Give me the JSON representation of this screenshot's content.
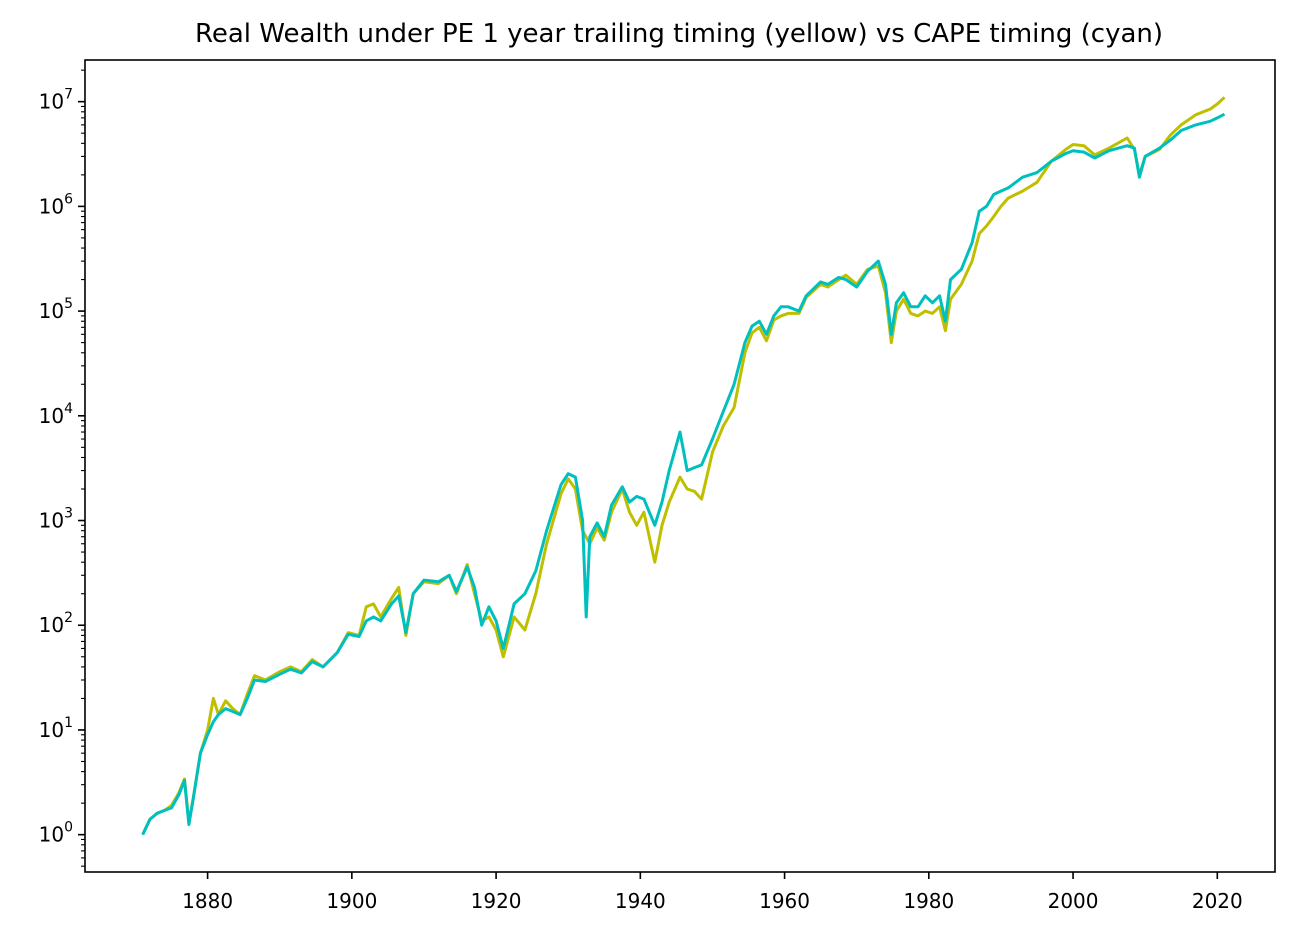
{
  "chart_data": {
    "type": "line",
    "title": "Real Wealth under PE 1 year trailing timing (yellow) vs CAPE timing (cyan)",
    "xlabel": "",
    "ylabel": "",
    "xlim": [
      1863,
      2028
    ],
    "ylim": [
      0.44,
      25000000
    ],
    "yscale": "log",
    "grid": false,
    "x_ticks": [
      "1880",
      "1900",
      "1920",
      "1940",
      "1960",
      "1980",
      "2000",
      "2020"
    ],
    "x_tick_values": [
      1880,
      1900,
      1920,
      1940,
      1960,
      1980,
      2000,
      2020
    ],
    "y_ticks": [
      {
        "value": 1,
        "base": "10",
        "exp": "0"
      },
      {
        "value": 10,
        "base": "10",
        "exp": "1"
      },
      {
        "value": 100,
        "base": "10",
        "exp": "2"
      },
      {
        "value": 1000,
        "base": "10",
        "exp": "3"
      },
      {
        "value": 10000,
        "base": "10",
        "exp": "4"
      },
      {
        "value": 100000,
        "base": "10",
        "exp": "5"
      },
      {
        "value": 1000000,
        "base": "10",
        "exp": "6"
      },
      {
        "value": 10000000,
        "base": "10",
        "exp": "7"
      }
    ],
    "series": [
      {
        "color": "#bfbf00",
        "points": [
          [
            1871.0,
            1.0
          ],
          [
            1872.0,
            1.4
          ],
          [
            1873.0,
            1.6
          ],
          [
            1874.0,
            1.7
          ],
          [
            1875.0,
            1.9
          ],
          [
            1876.0,
            2.5
          ],
          [
            1876.8,
            3.4
          ],
          [
            1877.4,
            1.3
          ],
          [
            1878.0,
            2.2
          ],
          [
            1879.0,
            6.0
          ],
          [
            1880.0,
            10.0
          ],
          [
            1880.8,
            20.0
          ],
          [
            1881.5,
            14.0
          ],
          [
            1882.5,
            19.0
          ],
          [
            1883.5,
            16.0
          ],
          [
            1884.5,
            14.0
          ],
          [
            1885.5,
            22.0
          ],
          [
            1886.5,
            33.0
          ],
          [
            1888.0,
            30.0
          ],
          [
            1890.0,
            36.0
          ],
          [
            1891.5,
            40.0
          ],
          [
            1893.0,
            36.0
          ],
          [
            1894.5,
            47.0
          ],
          [
            1896.0,
            40.0
          ],
          [
            1898.0,
            55.0
          ],
          [
            1899.5,
            85.0
          ],
          [
            1901.0,
            80.0
          ],
          [
            1902.0,
            150.0
          ],
          [
            1903.0,
            160.0
          ],
          [
            1904.0,
            120.0
          ],
          [
            1905.5,
            180.0
          ],
          [
            1906.5,
            230.0
          ],
          [
            1907.5,
            80.0
          ],
          [
            1908.5,
            200.0
          ],
          [
            1910.0,
            260.0
          ],
          [
            1912.0,
            250.0
          ],
          [
            1913.5,
            300.0
          ],
          [
            1914.5,
            200.0
          ],
          [
            1916.0,
            380.0
          ],
          [
            1917.0,
            200.0
          ],
          [
            1918.0,
            110.0
          ],
          [
            1919.0,
            120.0
          ],
          [
            1920.0,
            90.0
          ],
          [
            1921.0,
            50.0
          ],
          [
            1922.5,
            120.0
          ],
          [
            1924.0,
            90.0
          ],
          [
            1925.5,
            200.0
          ],
          [
            1927.0,
            600.0
          ],
          [
            1929.0,
            1800.0
          ],
          [
            1930.0,
            2500.0
          ],
          [
            1931.0,
            2000.0
          ],
          [
            1932.0,
            800.0
          ],
          [
            1933.0,
            600.0
          ],
          [
            1934.0,
            850.0
          ],
          [
            1935.0,
            650.0
          ],
          [
            1936.0,
            1200.0
          ],
          [
            1937.5,
            2000.0
          ],
          [
            1938.5,
            1200.0
          ],
          [
            1939.5,
            900.0
          ],
          [
            1940.5,
            1200.0
          ],
          [
            1942.0,
            400.0
          ],
          [
            1943.0,
            900.0
          ],
          [
            1944.0,
            1500.0
          ],
          [
            1945.5,
            2600.0
          ],
          [
            1946.5,
            2000.0
          ],
          [
            1947.5,
            1900.0
          ],
          [
            1948.5,
            1600.0
          ],
          [
            1950.0,
            4500.0
          ],
          [
            1951.5,
            8000.0
          ],
          [
            1953.0,
            12000.0
          ],
          [
            1954.5,
            40000.0
          ],
          [
            1955.5,
            62000.0
          ],
          [
            1956.5,
            70000.0
          ],
          [
            1957.5,
            52000.0
          ],
          [
            1958.5,
            82000.0
          ],
          [
            1959.5,
            90000.0
          ],
          [
            1960.5,
            95000.0
          ],
          [
            1962.0,
            95000.0
          ],
          [
            1963.0,
            135000.0
          ],
          [
            1965.0,
            180000.0
          ],
          [
            1966.0,
            170000.0
          ],
          [
            1967.5,
            200000.0
          ],
          [
            1968.5,
            220000.0
          ],
          [
            1970.0,
            180000.0
          ],
          [
            1971.5,
            250000.0
          ],
          [
            1973.0,
            270000.0
          ],
          [
            1974.0,
            150000.0
          ],
          [
            1974.8,
            50000.0
          ],
          [
            1975.5,
            100000.0
          ],
          [
            1976.5,
            130000.0
          ],
          [
            1977.5,
            95000.0
          ],
          [
            1978.5,
            90000.0
          ],
          [
            1979.5,
            100000.0
          ],
          [
            1980.5,
            95000.0
          ],
          [
            1981.5,
            110000.0
          ],
          [
            1982.3,
            65000.0
          ],
          [
            1983.0,
            130000.0
          ],
          [
            1984.5,
            180000.0
          ],
          [
            1986.0,
            300000.0
          ],
          [
            1987.0,
            550000.0
          ],
          [
            1988.0,
            650000.0
          ],
          [
            1989.0,
            800000.0
          ],
          [
            1990.0,
            1000000.0
          ],
          [
            1991.0,
            1200000.0
          ],
          [
            1993.0,
            1400000.0
          ],
          [
            1995.0,
            1700000.0
          ],
          [
            1997.0,
            2700000.0
          ],
          [
            1999.0,
            3500000.0
          ],
          [
            2000.0,
            3900000.0
          ],
          [
            2001.5,
            3800000.0
          ],
          [
            2003.0,
            3100000.0
          ],
          [
            2005.0,
            3600000.0
          ],
          [
            2007.5,
            4500000.0
          ],
          [
            2008.5,
            3500000.0
          ],
          [
            2009.2,
            2000000.0
          ],
          [
            2010.0,
            3000000.0
          ],
          [
            2012.0,
            3500000.0
          ],
          [
            2013.5,
            4800000.0
          ],
          [
            2015.0,
            6000000.0
          ],
          [
            2017.0,
            7500000.0
          ],
          [
            2019.0,
            8500000.0
          ],
          [
            2020.0,
            9500000.0
          ],
          [
            2021.0,
            11000000.0
          ]
        ]
      },
      {
        "color": "#00bfbf",
        "points": [
          [
            1871.0,
            1.0
          ],
          [
            1872.0,
            1.4
          ],
          [
            1873.0,
            1.6
          ],
          [
            1874.0,
            1.7
          ],
          [
            1875.0,
            1.8
          ],
          [
            1876.0,
            2.4
          ],
          [
            1876.8,
            3.3
          ],
          [
            1877.4,
            1.25
          ],
          [
            1878.0,
            2.2
          ],
          [
            1879.0,
            6.0
          ],
          [
            1880.0,
            9.0
          ],
          [
            1880.8,
            12.0
          ],
          [
            1881.5,
            14.0
          ],
          [
            1882.5,
            16.0
          ],
          [
            1883.5,
            15.0
          ],
          [
            1884.5,
            14.0
          ],
          [
            1885.5,
            20.0
          ],
          [
            1886.5,
            30.0
          ],
          [
            1888.0,
            29.0
          ],
          [
            1890.0,
            34.0
          ],
          [
            1891.5,
            38.0
          ],
          [
            1893.0,
            35.0
          ],
          [
            1894.5,
            45.0
          ],
          [
            1896.0,
            40.0
          ],
          [
            1898.0,
            55.0
          ],
          [
            1899.5,
            82.0
          ],
          [
            1901.0,
            78.0
          ],
          [
            1902.0,
            110.0
          ],
          [
            1903.0,
            120.0
          ],
          [
            1904.0,
            110.0
          ],
          [
            1905.5,
            160.0
          ],
          [
            1906.5,
            190.0
          ],
          [
            1907.5,
            85.0
          ],
          [
            1908.5,
            200.0
          ],
          [
            1910.0,
            270.0
          ],
          [
            1912.0,
            260.0
          ],
          [
            1913.5,
            300.0
          ],
          [
            1914.5,
            210.0
          ],
          [
            1916.0,
            360.0
          ],
          [
            1917.0,
            230.0
          ],
          [
            1918.0,
            100.0
          ],
          [
            1919.0,
            150.0
          ],
          [
            1920.0,
            110.0
          ],
          [
            1921.0,
            60.0
          ],
          [
            1922.5,
            160.0
          ],
          [
            1924.0,
            200.0
          ],
          [
            1925.5,
            330.0
          ],
          [
            1927.0,
            800.0
          ],
          [
            1929.0,
            2200.0
          ],
          [
            1930.0,
            2800.0
          ],
          [
            1931.0,
            2600.0
          ],
          [
            1932.0,
            1000.0
          ],
          [
            1932.5,
            120.0
          ],
          [
            1933.0,
            700.0
          ],
          [
            1934.0,
            950.0
          ],
          [
            1935.0,
            700.0
          ],
          [
            1936.0,
            1400.0
          ],
          [
            1937.5,
            2100.0
          ],
          [
            1938.5,
            1500.0
          ],
          [
            1939.5,
            1700.0
          ],
          [
            1940.5,
            1600.0
          ],
          [
            1942.0,
            900.0
          ],
          [
            1943.0,
            1500.0
          ],
          [
            1944.0,
            3000.0
          ],
          [
            1945.5,
            7000.0
          ],
          [
            1946.5,
            3000.0
          ],
          [
            1947.5,
            3200.0
          ],
          [
            1948.5,
            3400.0
          ],
          [
            1950.0,
            6000.0
          ],
          [
            1951.5,
            11000.0
          ],
          [
            1953.0,
            20000.0
          ],
          [
            1954.5,
            50000.0
          ],
          [
            1955.5,
            72000.0
          ],
          [
            1956.5,
            80000.0
          ],
          [
            1957.5,
            60000.0
          ],
          [
            1958.5,
            90000.0
          ],
          [
            1959.5,
            110000.0
          ],
          [
            1960.5,
            110000.0
          ],
          [
            1962.0,
            100000.0
          ],
          [
            1963.0,
            140000.0
          ],
          [
            1965.0,
            190000.0
          ],
          [
            1966.0,
            180000.0
          ],
          [
            1967.5,
            210000.0
          ],
          [
            1968.5,
            200000.0
          ],
          [
            1970.0,
            170000.0
          ],
          [
            1971.5,
            240000.0
          ],
          [
            1973.0,
            300000.0
          ],
          [
            1974.0,
            180000.0
          ],
          [
            1974.8,
            60000.0
          ],
          [
            1975.5,
            120000.0
          ],
          [
            1976.5,
            150000.0
          ],
          [
            1977.5,
            110000.0
          ],
          [
            1978.5,
            110000.0
          ],
          [
            1979.5,
            140000.0
          ],
          [
            1980.5,
            120000.0
          ],
          [
            1981.5,
            140000.0
          ],
          [
            1982.3,
            80000.0
          ],
          [
            1983.0,
            200000.0
          ],
          [
            1984.5,
            250000.0
          ],
          [
            1986.0,
            450000.0
          ],
          [
            1987.0,
            900000.0
          ],
          [
            1988.0,
            1000000.0
          ],
          [
            1989.0,
            1300000.0
          ],
          [
            1990.0,
            1400000.0
          ],
          [
            1991.0,
            1500000.0
          ],
          [
            1993.0,
            1900000.0
          ],
          [
            1995.0,
            2100000.0
          ],
          [
            1997.0,
            2700000.0
          ],
          [
            1999.0,
            3200000.0
          ],
          [
            2000.0,
            3400000.0
          ],
          [
            2001.5,
            3300000.0
          ],
          [
            2003.0,
            2900000.0
          ],
          [
            2005.0,
            3400000.0
          ],
          [
            2007.5,
            3800000.0
          ],
          [
            2008.5,
            3600000.0
          ],
          [
            2009.2,
            1900000.0
          ],
          [
            2010.0,
            3000000.0
          ],
          [
            2012.0,
            3600000.0
          ],
          [
            2013.5,
            4300000.0
          ],
          [
            2015.0,
            5300000.0
          ],
          [
            2017.0,
            6000000.0
          ],
          [
            2019.0,
            6500000.0
          ],
          [
            2020.0,
            7000000.0
          ],
          [
            2021.0,
            7600000.0
          ]
        ]
      }
    ]
  }
}
